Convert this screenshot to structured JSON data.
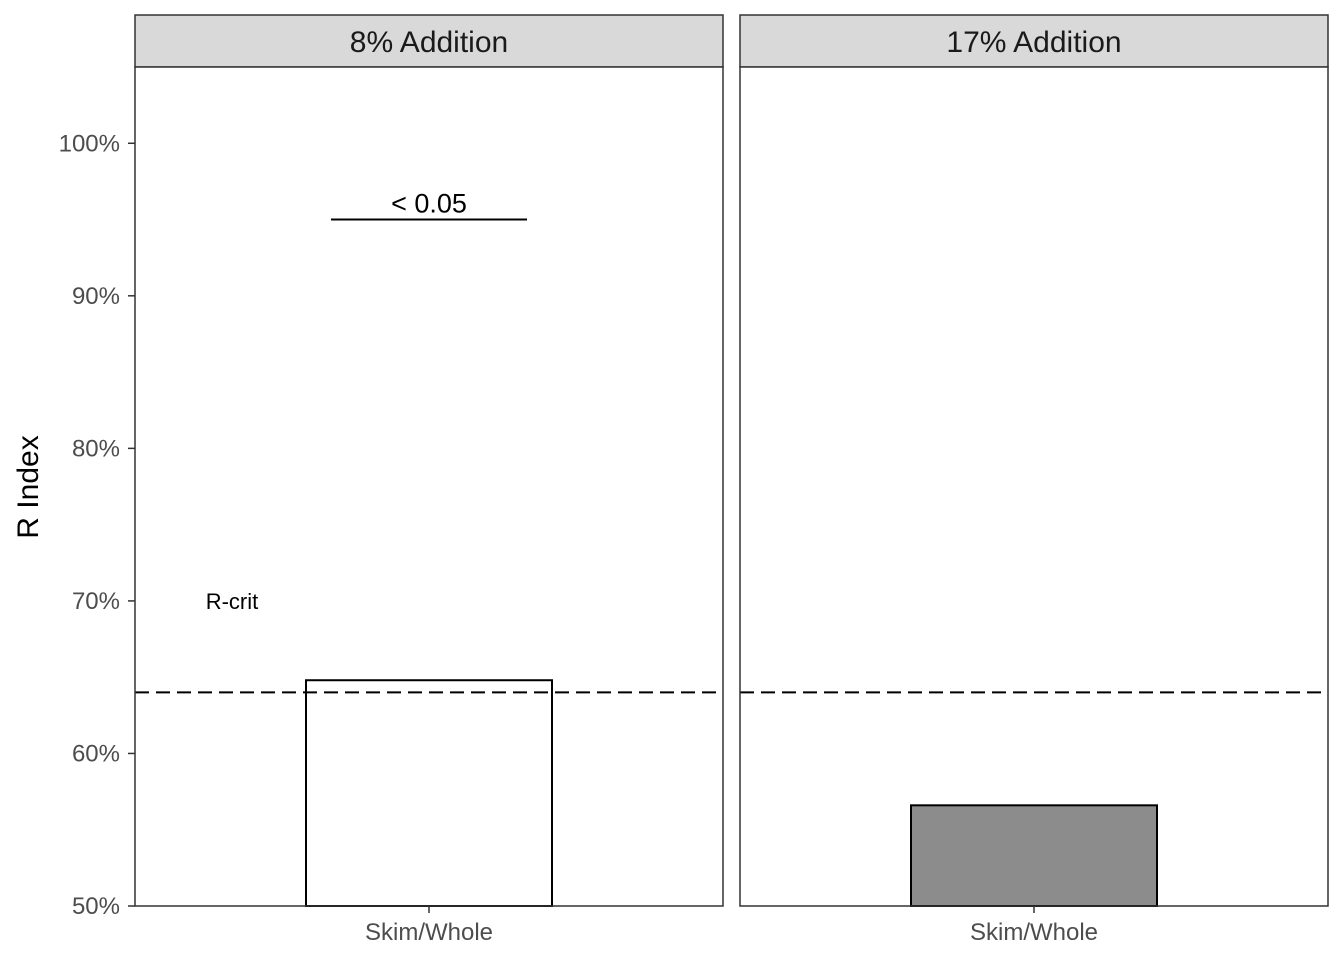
{
  "chart_data": {
    "type": "bar",
    "ylabel": "R Index",
    "ylim": [
      50,
      105
    ],
    "yticks": [
      50,
      60,
      70,
      80,
      90,
      100
    ],
    "ytick_labels": [
      "50%",
      "60%",
      "70%",
      "80%",
      "90%",
      "100%"
    ],
    "reference_line": {
      "value": 64,
      "label": "R-crit",
      "label_y": 70,
      "style": "dashed"
    },
    "panels": [
      {
        "strip": "8% Addition",
        "categories": [
          "Skim/Whole"
        ],
        "values": [
          64.8
        ],
        "fill": "#ffffff",
        "annotation": {
          "text": "< 0.05",
          "y": 95
        }
      },
      {
        "strip": "17% Addition",
        "categories": [
          "Skim/Whole"
        ],
        "values": [
          56.6
        ],
        "fill": "#8c8c8c"
      }
    ]
  }
}
